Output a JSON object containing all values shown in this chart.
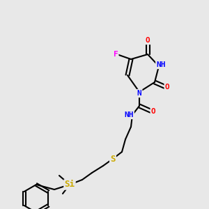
{
  "bg_color": "#e8e8e8",
  "atom_colors": {
    "C": "#000000",
    "N": "#0000ff",
    "O": "#ff0000",
    "F": "#ff00ff",
    "S": "#ccaa00",
    "Si": "#ccaa00",
    "H": "#888888"
  },
  "bond_color": "#000000",
  "bond_width": 1.5,
  "font_size": 8
}
